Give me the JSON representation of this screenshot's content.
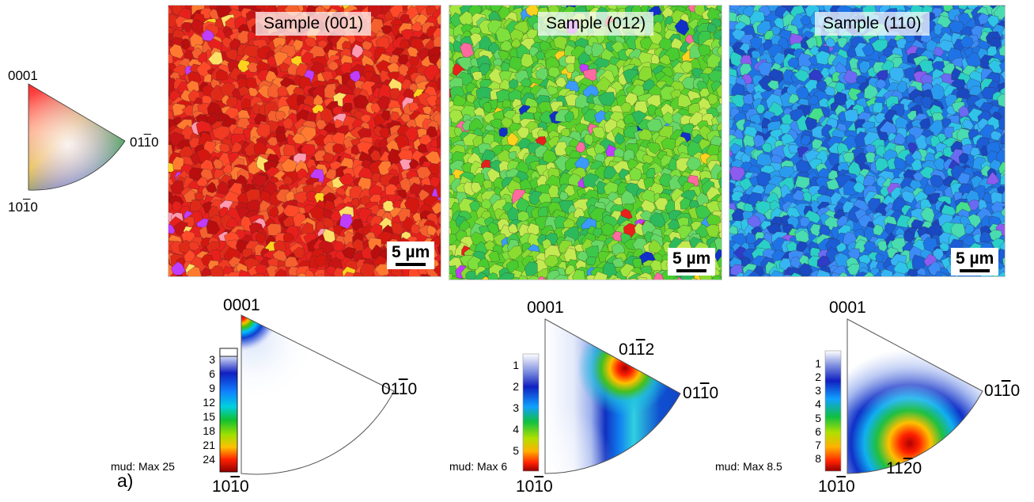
{
  "legend_triangle": {
    "top_label": "0001",
    "right_label_parts": [
      "01",
      "1",
      "0"
    ],
    "bottom_label_parts": [
      "10",
      "1",
      "0"
    ]
  },
  "maps": [
    {
      "label": "Sample (001)",
      "scale": "5 µm",
      "palette": [
        "#e8201c",
        "#d41810",
        "#f03a22",
        "#c81414",
        "#ff4a2a",
        "#e02a18",
        "#b80e0e",
        "#f5602e",
        "#ff7a30"
      ],
      "accents": [
        "#ffd21e",
        "#c03cff",
        "#ff9ab0",
        "#ffe066"
      ]
    },
    {
      "label": "Sample (012)",
      "scale": "5 µm",
      "palette": [
        "#58d02a",
        "#7ee03c",
        "#3cc84a",
        "#a4e640",
        "#66d866",
        "#2cba5c",
        "#c4ea52",
        "#48cc30",
        "#8adc30"
      ],
      "accents": [
        "#1030c8",
        "#ffd21e",
        "#3a9aff",
        "#ff6aa0",
        "#c03cff",
        "#e8201c"
      ]
    },
    {
      "label": "Sample (110)",
      "scale": "5 µm",
      "palette": [
        "#1e74e6",
        "#2a9cf0",
        "#2fc4e8",
        "#1c5cd4",
        "#36b4f4",
        "#2ad0c8",
        "#3c8cf8",
        "#1a48c0",
        "#48dcb0"
      ],
      "accents": [
        "#2e3cc8",
        "#8c5cf0",
        "#44e08c",
        "#6a6af4"
      ]
    }
  ],
  "pole_figures": [
    {
      "top_label": "0001",
      "right_label_parts": [
        "01",
        "1",
        "0"
      ],
      "bottom_label_parts": [
        "10",
        "1",
        "0"
      ],
      "mud": "mud: Max 25",
      "max": 25,
      "ticks": [
        "3",
        "6",
        "9",
        "12",
        "15",
        "18",
        "21",
        "24"
      ],
      "annotation_parts": null
    },
    {
      "top_label": "0001",
      "right_label_parts": [
        "01",
        "1",
        "0"
      ],
      "bottom_label_parts": [
        "10",
        "1",
        "0"
      ],
      "mud": "mud: Max 6",
      "max": 6,
      "ticks": [
        "1",
        "2",
        "3",
        "4",
        "5"
      ],
      "annotation_parts": [
        "01",
        "1",
        "2"
      ]
    },
    {
      "top_label": "0001",
      "right_label_parts": [
        "01",
        "1",
        "0"
      ],
      "bottom_label_parts": [
        "10",
        "1",
        "0"
      ],
      "mud": "mud: Max 8.5",
      "max": 8.5,
      "ticks": [
        "1",
        "2",
        "3",
        "4",
        "5",
        "6",
        "7",
        "8"
      ],
      "annotation_parts": [
        "11",
        "2",
        "0"
      ]
    }
  ],
  "panel_label": "a)"
}
